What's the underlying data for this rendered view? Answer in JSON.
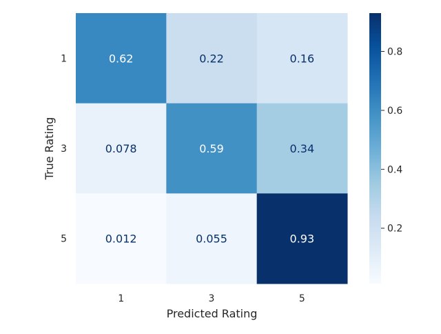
{
  "chart_data": {
    "type": "heatmap",
    "title": "",
    "xlabel": "Predicted Rating",
    "ylabel": "True Rating",
    "x_categories": [
      "1",
      "3",
      "5"
    ],
    "y_categories": [
      "1",
      "3",
      "5"
    ],
    "values": [
      [
        0.62,
        0.22,
        0.16
      ],
      [
        0.078,
        0.59,
        0.34
      ],
      [
        0.012,
        0.055,
        0.93
      ]
    ],
    "cell_labels": [
      [
        "0.62",
        "0.22",
        "0.16"
      ],
      [
        "0.078",
        "0.59",
        "0.34"
      ],
      [
        "0.012",
        "0.055",
        "0.93"
      ]
    ],
    "colormap": "Blues",
    "color_range": [
      0.012,
      0.93
    ],
    "colorbar_ticks": [
      0.2,
      0.4,
      0.6,
      0.8
    ],
    "colorbar_tick_labels": [
      "0.2",
      "0.4",
      "0.6",
      "0.8"
    ],
    "colorbar_stops": [
      "#f7fbff",
      "#deebf7",
      "#c6dbef",
      "#9ecae1",
      "#6baed6",
      "#4292c6",
      "#2171b5",
      "#08519c",
      "#08306b"
    ],
    "dark_text_color": "#08306b",
    "light_text_color": "#ffffff",
    "tick_color": "#262626"
  }
}
